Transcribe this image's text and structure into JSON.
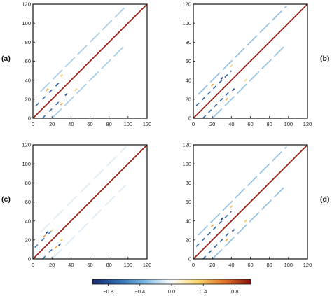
{
  "chart_data": [
    {
      "type": "heatmap",
      "panel_label": "(a)",
      "xlim": [
        0,
        120
      ],
      "ylim": [
        0,
        120
      ],
      "xticks": [
        "0",
        "20",
        "40",
        "60",
        "80",
        "100",
        "120"
      ],
      "yticks": [
        "0",
        "20",
        "40",
        "60",
        "80",
        "100",
        "120"
      ],
      "diagonal_value": 0.95,
      "bands": [
        {
          "offset": 20,
          "value": -0.25,
          "start": 8,
          "end": 98,
          "dash": 10,
          "gap": 3
        },
        {
          "offset": -20,
          "value": -0.25,
          "start": 8,
          "end": 98,
          "dash": 10,
          "gap": 3
        },
        {
          "offset": 10,
          "value": -0.65,
          "start": 3,
          "end": 28,
          "dash": 3,
          "gap": 4
        },
        {
          "offset": -10,
          "value": -0.65,
          "start": 3,
          "end": 28,
          "dash": 3,
          "gap": 4
        }
      ],
      "spots": [
        {
          "x": 30,
          "y": 45,
          "value": 0.35
        },
        {
          "x": 45,
          "y": 30,
          "value": 0.35
        },
        {
          "x": 15,
          "y": 30,
          "value": 0.5
        },
        {
          "x": 30,
          "y": 15,
          "value": 0.5
        },
        {
          "x": 25,
          "y": 35,
          "value": -0.8
        },
        {
          "x": 35,
          "y": 25,
          "value": -0.8
        }
      ]
    },
    {
      "type": "heatmap",
      "panel_label": "(b)",
      "xlim": [
        0,
        120
      ],
      "ylim": [
        0,
        120
      ],
      "xticks": [
        "0",
        "20",
        "40",
        "60",
        "80",
        "100",
        "120"
      ],
      "yticks": [
        "0",
        "20",
        "40",
        "60",
        "80",
        "100",
        "120"
      ],
      "diagonal_value": 0.95,
      "bands": [
        {
          "offset": 20,
          "value": -0.3,
          "start": 5,
          "end": 98,
          "dash": 10,
          "gap": 3
        },
        {
          "offset": -20,
          "value": -0.3,
          "start": 5,
          "end": 98,
          "dash": 10,
          "gap": 3
        },
        {
          "offset": 10,
          "value": -0.7,
          "start": 3,
          "end": 40,
          "dash": 3,
          "gap": 3
        },
        {
          "offset": -10,
          "value": -0.7,
          "start": 3,
          "end": 40,
          "dash": 3,
          "gap": 3
        }
      ],
      "spots": [
        {
          "x": 40,
          "y": 55,
          "value": 0.3
        },
        {
          "x": 55,
          "y": 40,
          "value": 0.3
        },
        {
          "x": 20,
          "y": 35,
          "value": 0.5
        },
        {
          "x": 35,
          "y": 20,
          "value": 0.5
        },
        {
          "x": 30,
          "y": 42,
          "value": -0.85
        },
        {
          "x": 42,
          "y": 30,
          "value": -0.85
        }
      ]
    },
    {
      "type": "heatmap",
      "panel_label": "(c)",
      "xlim": [
        0,
        120
      ],
      "ylim": [
        0,
        120
      ],
      "xticks": [
        "0",
        "20",
        "40",
        "60",
        "80",
        "100",
        "120"
      ],
      "yticks": [
        "0",
        "20",
        "40",
        "60",
        "80",
        "100",
        "120"
      ],
      "diagonal_value": 0.95,
      "bands": [
        {
          "offset": 20,
          "value": -0.1,
          "start": 8,
          "end": 98,
          "dash": 10,
          "gap": 4
        },
        {
          "offset": -20,
          "value": -0.1,
          "start": 8,
          "end": 98,
          "dash": 10,
          "gap": 4
        },
        {
          "offset": 10,
          "value": -0.6,
          "start": 2,
          "end": 22,
          "dash": 3,
          "gap": 4
        },
        {
          "offset": -10,
          "value": -0.6,
          "start": 2,
          "end": 22,
          "dash": 3,
          "gap": 4
        }
      ],
      "spots": [
        {
          "x": 20,
          "y": 30,
          "value": 0.35
        },
        {
          "x": 30,
          "y": 20,
          "value": 0.35
        },
        {
          "x": 12,
          "y": 24,
          "value": 0.5
        },
        {
          "x": 24,
          "y": 12,
          "value": 0.5
        },
        {
          "x": 15,
          "y": 28,
          "value": -0.8
        },
        {
          "x": 28,
          "y": 15,
          "value": -0.8
        }
      ]
    },
    {
      "type": "heatmap",
      "panel_label": "(d)",
      "xlim": [
        0,
        120
      ],
      "ylim": [
        0,
        120
      ],
      "xticks": [
        "0",
        "20",
        "40",
        "60",
        "80",
        "100",
        "120"
      ],
      "yticks": [
        "0",
        "20",
        "40",
        "60",
        "80",
        "100",
        "120"
      ],
      "diagonal_value": 0.95,
      "bands": [
        {
          "offset": 20,
          "value": -0.3,
          "start": 5,
          "end": 98,
          "dash": 10,
          "gap": 3
        },
        {
          "offset": -20,
          "value": -0.3,
          "start": 5,
          "end": 98,
          "dash": 10,
          "gap": 3
        },
        {
          "offset": 10,
          "value": -0.7,
          "start": 3,
          "end": 40,
          "dash": 3,
          "gap": 3
        },
        {
          "offset": -10,
          "value": -0.7,
          "start": 3,
          "end": 40,
          "dash": 3,
          "gap": 3
        }
      ],
      "spots": [
        {
          "x": 40,
          "y": 55,
          "value": 0.35
        },
        {
          "x": 55,
          "y": 40,
          "value": 0.35
        },
        {
          "x": 20,
          "y": 35,
          "value": 0.5
        },
        {
          "x": 35,
          "y": 20,
          "value": 0.5
        },
        {
          "x": 30,
          "y": 42,
          "value": -0.85
        },
        {
          "x": 42,
          "y": 30,
          "value": -0.85
        }
      ]
    }
  ],
  "colorbar": {
    "range": [
      -1,
      1
    ],
    "tick_labels": [
      "−0.8",
      "−0.4",
      "0.0",
      "0.4",
      "0.8"
    ],
    "tick_values": [
      -0.8,
      -0.4,
      0.0,
      0.4,
      0.8
    ],
    "colors": [
      "#1b2a6e",
      "#2f6db0",
      "#7fb8e0",
      "#ffffff",
      "#f6d36a",
      "#e3742a",
      "#8b0d0d"
    ]
  }
}
